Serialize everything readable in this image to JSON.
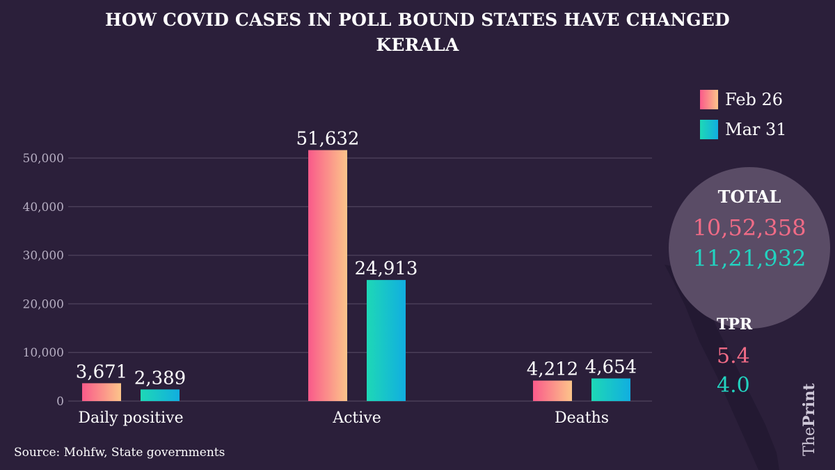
{
  "header": {
    "title": "HOW COVID CASES IN POLL BOUND STATES HAVE CHANGED",
    "subtitle": "KERALA"
  },
  "colors": {
    "background": "#2b1f3a",
    "feb_gradient_start": "#fa5a8a",
    "feb_gradient_end": "#fcc58a",
    "mar_gradient_start": "#1ed8b6",
    "mar_gradient_end": "#11aee0",
    "feb_text": "#f06b86",
    "mar_text": "#22d3c0",
    "circle": "#5a4c66",
    "grid": "#4a3e58",
    "axis_text": "#b6aec2"
  },
  "legend": {
    "feb_label": "Feb 26",
    "mar_label": "Mar 31"
  },
  "totals": {
    "label": "TOTAL",
    "feb_value": "10,52,358",
    "mar_value": "11,21,932"
  },
  "tpr": {
    "label": "TPR",
    "feb_value": "5.4",
    "mar_value": "4.0"
  },
  "source": "Source: Mohfw,  State governments",
  "brand": {
    "prefix": "The",
    "name": "Print"
  },
  "chart_data": {
    "type": "bar",
    "title": "HOW COVID CASES IN POLL BOUND STATES HAVE CHANGED",
    "subtitle": "KERALA",
    "categories": [
      "Daily positive",
      "Active",
      "Deaths"
    ],
    "series": [
      {
        "name": "Feb 26",
        "values": [
          3671,
          51632,
          4212
        ],
        "labels": [
          "3,671",
          "51,632",
          "4,212"
        ]
      },
      {
        "name": "Mar 31",
        "values": [
          2389,
          24913,
          4654
        ],
        "labels": [
          "2,389",
          "24,913",
          "4,654"
        ]
      }
    ],
    "yticks": [
      0,
      10000,
      20000,
      30000,
      40000,
      50000
    ],
    "ytick_labels": [
      "0",
      "10,000",
      "20,000",
      "30,000",
      "40,000",
      "50,000"
    ],
    "ylim": [
      0,
      50000
    ],
    "xlabel": "",
    "ylabel": "",
    "grid": true,
    "legend_position": "top-right"
  }
}
